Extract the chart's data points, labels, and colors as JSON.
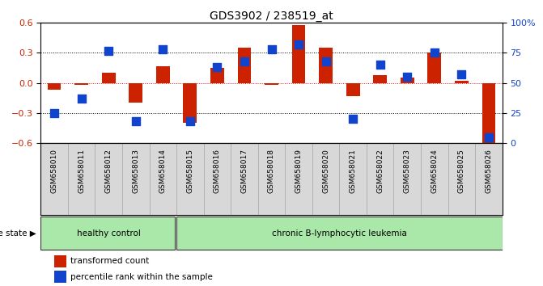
{
  "title": "GDS3902 / 238519_at",
  "samples": [
    "GSM658010",
    "GSM658011",
    "GSM658012",
    "GSM658013",
    "GSM658014",
    "GSM658015",
    "GSM658016",
    "GSM658017",
    "GSM658018",
    "GSM658019",
    "GSM658020",
    "GSM658021",
    "GSM658022",
    "GSM658023",
    "GSM658024",
    "GSM658025",
    "GSM658026"
  ],
  "transformed_count": [
    -0.07,
    -0.02,
    0.1,
    -0.2,
    0.17,
    -0.4,
    0.15,
    0.35,
    -0.02,
    0.58,
    0.35,
    -0.13,
    0.08,
    0.05,
    0.3,
    0.02,
    -0.6
  ],
  "percentile_rank": [
    25,
    37,
    77,
    18,
    78,
    18,
    63,
    68,
    78,
    82,
    68,
    20,
    65,
    55,
    75,
    57,
    5
  ],
  "healthy_control_count": 5,
  "bar_color": "#cc2200",
  "dot_color": "#1144cc",
  "ylim_left": [
    -0.6,
    0.6
  ],
  "ylim_right": [
    0,
    100
  ],
  "yticks_left": [
    -0.6,
    -0.3,
    0.0,
    0.3,
    0.6
  ],
  "yticks_right": [
    0,
    25,
    50,
    75,
    100
  ],
  "ytick_labels_right": [
    "0",
    "25",
    "50",
    "75",
    "100%"
  ],
  "hline_dotted": [
    0.3,
    -0.3
  ],
  "hline_red_dotted": 0.0,
  "healthy_label": "healthy control",
  "leukemia_label": "chronic B-lymphocytic leukemia",
  "disease_state_label": "disease state",
  "legend_red": "transformed count",
  "legend_blue": "percentile rank within the sample",
  "healthy_bg": "#aae8aa",
  "leukemia_bg": "#aae8aa",
  "gray_bg": "#d8d8d8",
  "tick_label_color_left": "#cc2200",
  "tick_label_color_right": "#1144cc",
  "bar_width": 0.5,
  "dot_size": 55,
  "title_fontsize": 10
}
